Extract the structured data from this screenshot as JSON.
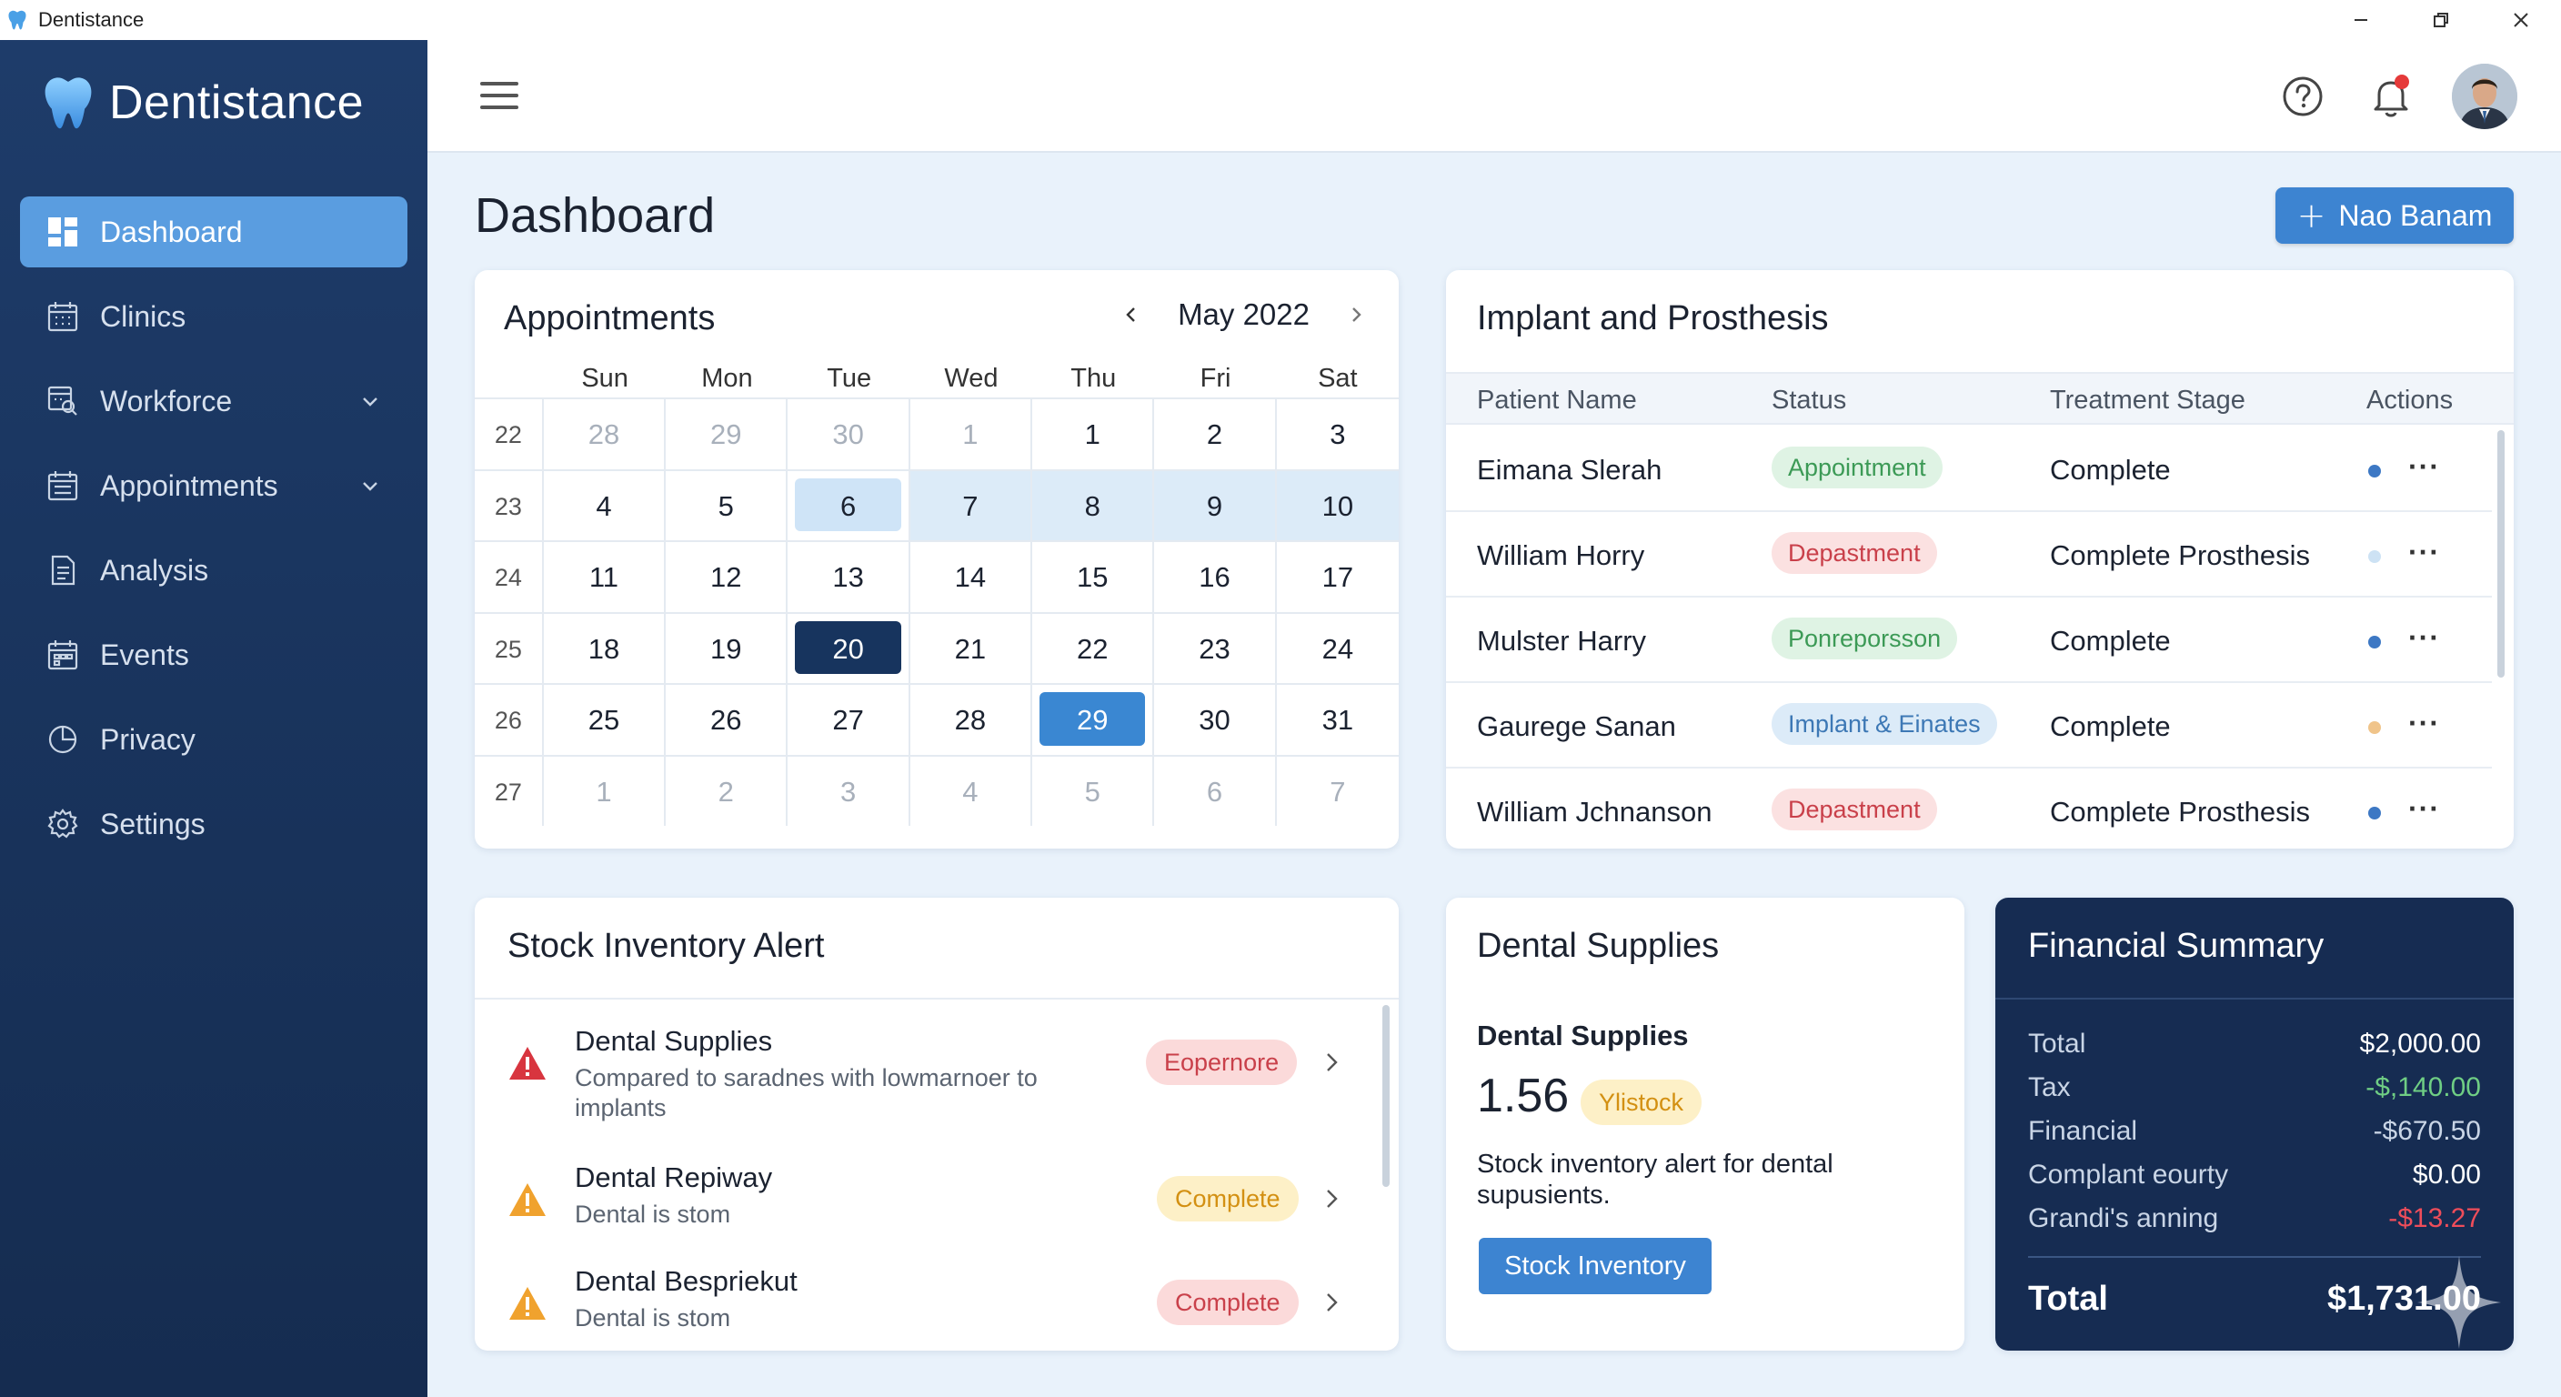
{
  "window": {
    "title": "Dentistance",
    "controls": [
      "minimize",
      "restore",
      "close"
    ]
  },
  "sidebar": {
    "brand": "Dentistance",
    "items": [
      {
        "label": "Dashboard",
        "icon": "dashboard-icon",
        "active": true
      },
      {
        "label": "Clinics",
        "icon": "calendar-grid-icon"
      },
      {
        "label": "Workforce",
        "icon": "workforce-icon",
        "expandable": true
      },
      {
        "label": "Appointments",
        "icon": "calendar-icon",
        "expandable": true
      },
      {
        "label": "Analysis",
        "icon": "document-icon"
      },
      {
        "label": "Events",
        "icon": "event-calendar-icon"
      },
      {
        "label": "Privacy",
        "icon": "pie-clock-icon"
      },
      {
        "label": "Settings",
        "icon": "gear-icon"
      }
    ]
  },
  "header": {
    "icons": [
      "menu-icon",
      "help-icon",
      "bell-icon",
      "avatar"
    ]
  },
  "page": {
    "title": "Dashboard",
    "new_button": "Nao Banam"
  },
  "appointments": {
    "title": "Appointments",
    "month": "May 2022",
    "weekdays": [
      "Sun",
      "Mon",
      "Tue",
      "Wed",
      "Thu",
      "Fri",
      "Sat"
    ],
    "weeks": [
      {
        "num": "22",
        "days": [
          "28",
          "29",
          "30",
          "1",
          "1",
          "2",
          "3"
        ]
      },
      {
        "num": "23",
        "days": [
          "4",
          "5",
          "6",
          "7",
          "8",
          "9",
          "10"
        ]
      },
      {
        "num": "24",
        "days": [
          "11",
          "12",
          "13",
          "14",
          "15",
          "16",
          "17"
        ]
      },
      {
        "num": "25",
        "days": [
          "18",
          "19",
          "20",
          "21",
          "22",
          "23",
          "24"
        ]
      },
      {
        "num": "26",
        "days": [
          "25",
          "26",
          "27",
          "28",
          "29",
          "30",
          "31"
        ]
      },
      {
        "num": "27",
        "days": [
          "1",
          "2",
          "3",
          "4",
          "5",
          "6",
          "7"
        ]
      }
    ]
  },
  "implant": {
    "title": "Implant and Prosthesis",
    "columns": [
      "Patient Name",
      "Status",
      "Treatment Stage",
      "Actions"
    ],
    "rows": [
      {
        "name": "Eimana Slerah",
        "status": "Appointment",
        "stage": "Complete"
      },
      {
        "name": "William Horry",
        "status": "Depastment",
        "stage": "Complete Prosthesis"
      },
      {
        "name": "Mulster Harry",
        "status": "Ponreporsson",
        "stage": "Complete"
      },
      {
        "name": "Gaurege Sanan",
        "status": "Implant & Einates",
        "stage": "Complete"
      },
      {
        "name": "William Jchnanson",
        "status": "Depastment",
        "stage": "Complete Prosthesis"
      }
    ],
    "colors": {
      "green_bg": "#dff3e4",
      "green_fg": "#3c9a56",
      "red_bg": "#fbe1e1",
      "red_fg": "#c9404a",
      "blue_bg": "#dcebf8",
      "blue_fg": "#3d78b5"
    }
  },
  "stock": {
    "title": "Stock Inventory Alert",
    "items": [
      {
        "title": "Dental Supplies",
        "desc": "Compared to saradnes with lowmarnoer to implants",
        "badge": "Eopernore",
        "severity": "red"
      },
      {
        "title": "Dental Repiway",
        "desc": "Dental is stom",
        "badge": "Complete",
        "severity": "amber"
      },
      {
        "title": "Dental Bespriekut",
        "desc": "Dental is stom",
        "badge": "Complete",
        "severity": "amber"
      }
    ]
  },
  "supplies": {
    "title": "Dental Supplies",
    "subtitle": "Dental Supplies",
    "value": "1.56",
    "badge": "Ylistock",
    "desc": "Stock inventory alert for dental supusients.",
    "button": "Stock Inventory"
  },
  "finance": {
    "title": "Financial Summary",
    "rows": [
      {
        "label": "Total",
        "value": "$2,000.00",
        "color": "#ffffff"
      },
      {
        "label": "Tax",
        "value": "-$,140.00",
        "color": "#6fce84"
      },
      {
        "label": "Financial",
        "value": "-$670.50",
        "color": "#c9d5e6"
      },
      {
        "label": "Complant eourty",
        "value": "$0.00",
        "color": "#ffffff"
      },
      {
        "label": "Grandi's anning",
        "value": "-$13.27",
        "color": "#ef4d5a"
      }
    ],
    "total_label": "Total",
    "total_value": "$1,731.00"
  }
}
